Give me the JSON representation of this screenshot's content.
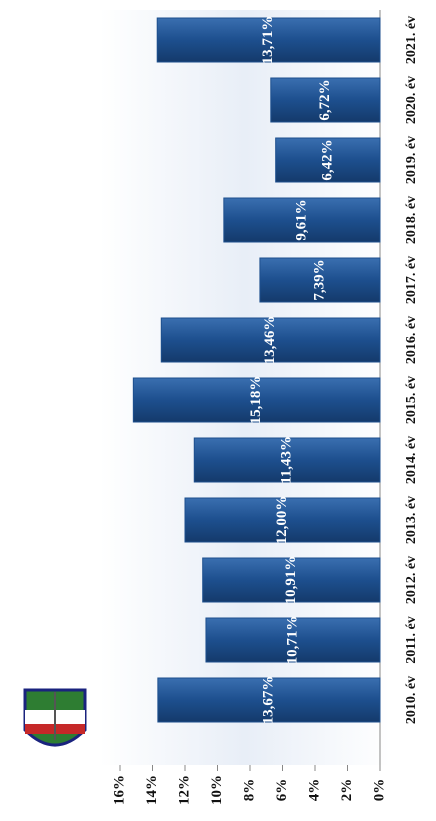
{
  "chart_data": {
    "type": "bar",
    "orientation": "rotated",
    "categories": [
      "2010. év",
      "2011. év",
      "2012. év",
      "2013. év",
      "2014. év",
      "2015. év",
      "2016. év",
      "2017. év",
      "2018. év",
      "2019. év",
      "2020. év",
      "2021. év"
    ],
    "values": [
      13.67,
      10.71,
      10.91,
      12.0,
      11.43,
      15.18,
      13.46,
      7.39,
      9.61,
      6.42,
      6.72,
      13.71
    ],
    "value_labels": [
      "13,67%",
      "10,71%",
      "10,91%",
      "12,00%",
      "11,43%",
      "15,18%",
      "13,46%",
      "7,39%",
      "9,61%",
      "6,42%",
      "6,72%",
      "13,71%"
    ],
    "color": "#1d4f8e",
    "ylim": [
      0,
      16
    ],
    "yticks": [
      {
        "value": 0,
        "label": "0%"
      },
      {
        "value": 2,
        "label": "2%"
      },
      {
        "value": 4,
        "label": "4%"
      },
      {
        "value": 6,
        "label": "6%"
      },
      {
        "value": 8,
        "label": "8%"
      },
      {
        "value": 10,
        "label": "10%"
      },
      {
        "value": 12,
        "label": "12%"
      },
      {
        "value": 14,
        "label": "14%"
      },
      {
        "value": 16,
        "label": "16%"
      }
    ]
  }
}
